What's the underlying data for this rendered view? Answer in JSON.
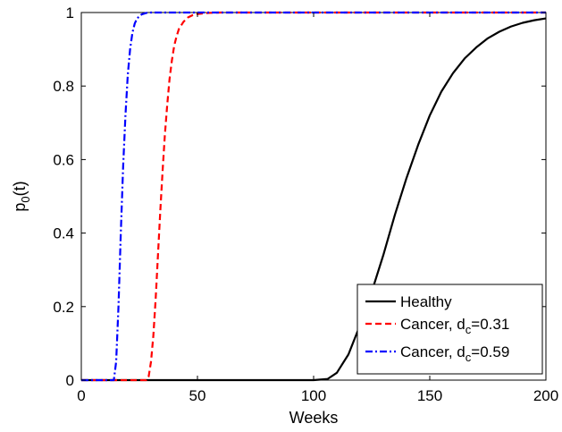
{
  "chart_data": {
    "type": "line",
    "title": "",
    "xlabel": "Weeks",
    "ylabel": {
      "base": "p",
      "sub": "0",
      "rest": "(t)"
    },
    "xlim": [
      0,
      200
    ],
    "ylim": [
      0,
      1
    ],
    "xticks": [
      0,
      50,
      100,
      150,
      200
    ],
    "yticks": [
      0,
      0.2,
      0.4,
      0.6,
      0.8,
      1
    ],
    "xtick_labels": [
      "0",
      "50",
      "100",
      "150",
      "200"
    ],
    "ytick_labels": [
      "0",
      "0.2",
      "0.4",
      "0.6",
      "0.8",
      "1"
    ],
    "grid": false,
    "legend_position": "bottom-right",
    "series": [
      {
        "name": "Healthy",
        "legend": {
          "text": "Healthy",
          "sub": "",
          "suffix": ""
        },
        "color": "#000000",
        "style": "solid",
        "x": [
          0,
          100,
          106,
          110,
          115,
          120,
          125,
          130,
          135,
          140,
          145,
          150,
          155,
          160,
          165,
          170,
          175,
          180,
          185,
          190,
          195,
          200
        ],
        "y": [
          0,
          0,
          0.003,
          0.02,
          0.07,
          0.15,
          0.24,
          0.34,
          0.45,
          0.55,
          0.64,
          0.72,
          0.785,
          0.835,
          0.875,
          0.905,
          0.93,
          0.948,
          0.962,
          0.972,
          0.979,
          0.984
        ]
      },
      {
        "name": "Cancer, dc=0.31",
        "legend": {
          "text": "Cancer, d",
          "sub": "c",
          "suffix": "=0.31"
        },
        "color": "#ff0000",
        "style": "dashed",
        "x": [
          0,
          28,
          29,
          30,
          31,
          32,
          33,
          34,
          35,
          36,
          37,
          38,
          39,
          40,
          41,
          42,
          44,
          46,
          48,
          50,
          55,
          60,
          200
        ],
        "y": [
          0,
          0,
          0.01,
          0.05,
          0.12,
          0.22,
          0.34,
          0.46,
          0.57,
          0.67,
          0.75,
          0.82,
          0.87,
          0.91,
          0.935,
          0.955,
          0.975,
          0.987,
          0.993,
          0.996,
          0.999,
          1,
          1
        ]
      },
      {
        "name": "Cancer, dc=0.59",
        "legend": {
          "text": "Cancer, d",
          "sub": "c",
          "suffix": "=0.59"
        },
        "color": "#0000ff",
        "style": "dashdot",
        "x": [
          0,
          14,
          15,
          16,
          17,
          18,
          19,
          20,
          21,
          22,
          23,
          24,
          26,
          28,
          30,
          35,
          200
        ],
        "y": [
          0,
          0,
          0.05,
          0.2,
          0.4,
          0.58,
          0.72,
          0.83,
          0.9,
          0.945,
          0.97,
          0.984,
          0.995,
          0.999,
          1,
          1,
          1
        ]
      }
    ]
  }
}
